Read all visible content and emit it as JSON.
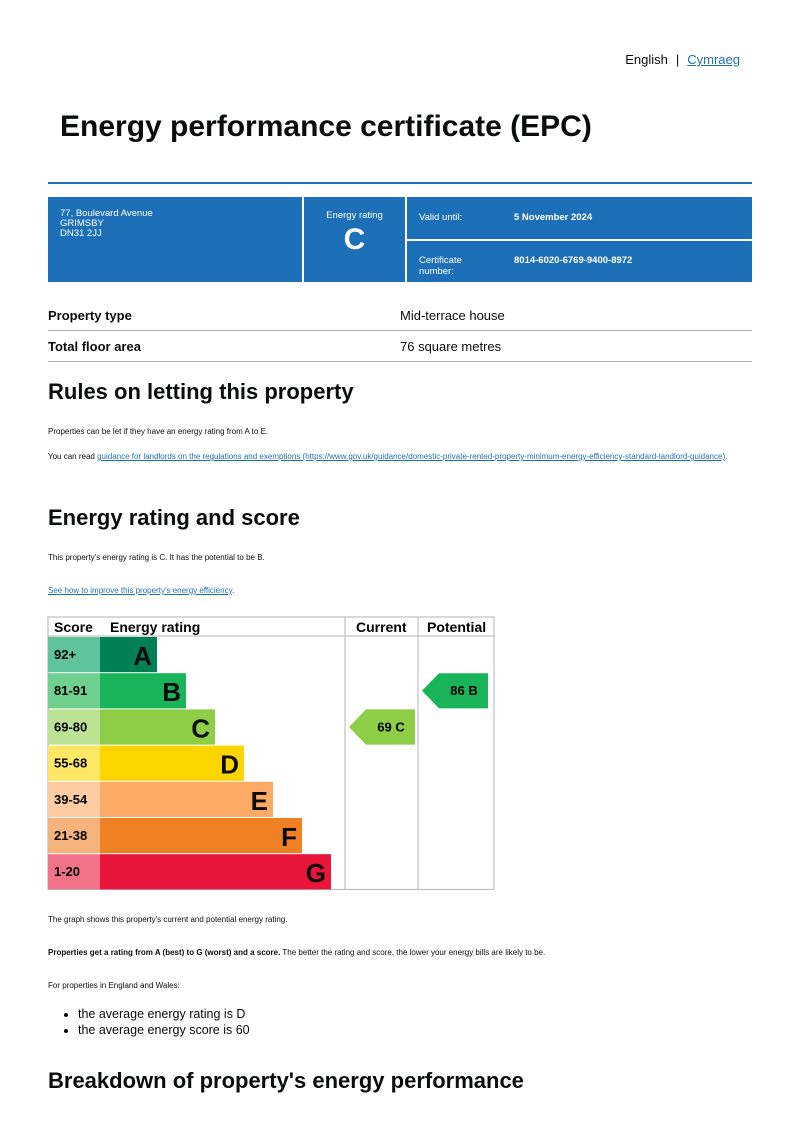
{
  "lang": {
    "english": "English",
    "cymraeg": "Cymraeg"
  },
  "title": "Energy performance certificate (EPC)",
  "summary": {
    "address": [
      "77, Boulevard Avenue",
      "GRIMSBY",
      "DN31 2JJ"
    ],
    "rating_label": "Energy rating",
    "rating": "C",
    "valid_label": "Valid until:",
    "valid_value": "5 November 2024",
    "cert_label": "Certificate number:",
    "cert_value": "8014-6020-6769-9400-8972"
  },
  "property": [
    {
      "label": "Property type",
      "value": "Mid-terrace house"
    },
    {
      "label": "Total floor area",
      "value": "76 square metres"
    }
  ],
  "letting": {
    "heading": "Rules on letting this property",
    "p1": "Properties can be let if they have an energy rating from A to E.",
    "p2_pre": "You can read ",
    "p2_link": "guidance for landlords on the regulations and exemptions (https://www.gov.uk/guidance/domestic-private-rented-property-minimum-energy-efficiency-standard-landlord-guidance)",
    "p2_post": "."
  },
  "rating_section": {
    "heading": "Energy rating and score",
    "p1": "This property's energy rating is C. It has the potential to be B.",
    "link": "See how to improve this property's energy efficiency",
    "link_post": ".",
    "graph_note": "The graph shows this property's current and potential energy rating.",
    "bold": "Properties get a rating from A (best) to G (worst) and a score.",
    "rest": " The better the rating and score, the lower your energy bills are likely to be.",
    "avg_intro": "For properties in England and Wales:",
    "avg": [
      "the average energy rating is D",
      "the average energy score is 60"
    ]
  },
  "breakdown_heading": "Breakdown of property's energy performance",
  "chart_data": {
    "type": "table",
    "headers": [
      "Score",
      "Energy rating",
      "Current",
      "Potential"
    ],
    "bands": [
      {
        "letter": "A",
        "range": "92+",
        "color": "#008054",
        "tint": "#5fc39b"
      },
      {
        "letter": "B",
        "range": "81-91",
        "color": "#19b459",
        "tint": "#6fd08f"
      },
      {
        "letter": "C",
        "range": "69-80",
        "color": "#8dce46",
        "tint": "#bce394"
      },
      {
        "letter": "D",
        "range": "55-68",
        "color": "#ffd500",
        "tint": "#ffe766"
      },
      {
        "letter": "E",
        "range": "39-54",
        "color": "#fcaa65",
        "tint": "#fdcca2"
      },
      {
        "letter": "F",
        "range": "21-38",
        "color": "#ef8023",
        "tint": "#f5b37b"
      },
      {
        "letter": "G",
        "range": "1-20",
        "color": "#e9153b",
        "tint": "#f27389"
      }
    ],
    "current": {
      "score": 69,
      "letter": "C",
      "label": "69  C"
    },
    "potential": {
      "score": 86,
      "letter": "B",
      "label": "86  B"
    }
  }
}
